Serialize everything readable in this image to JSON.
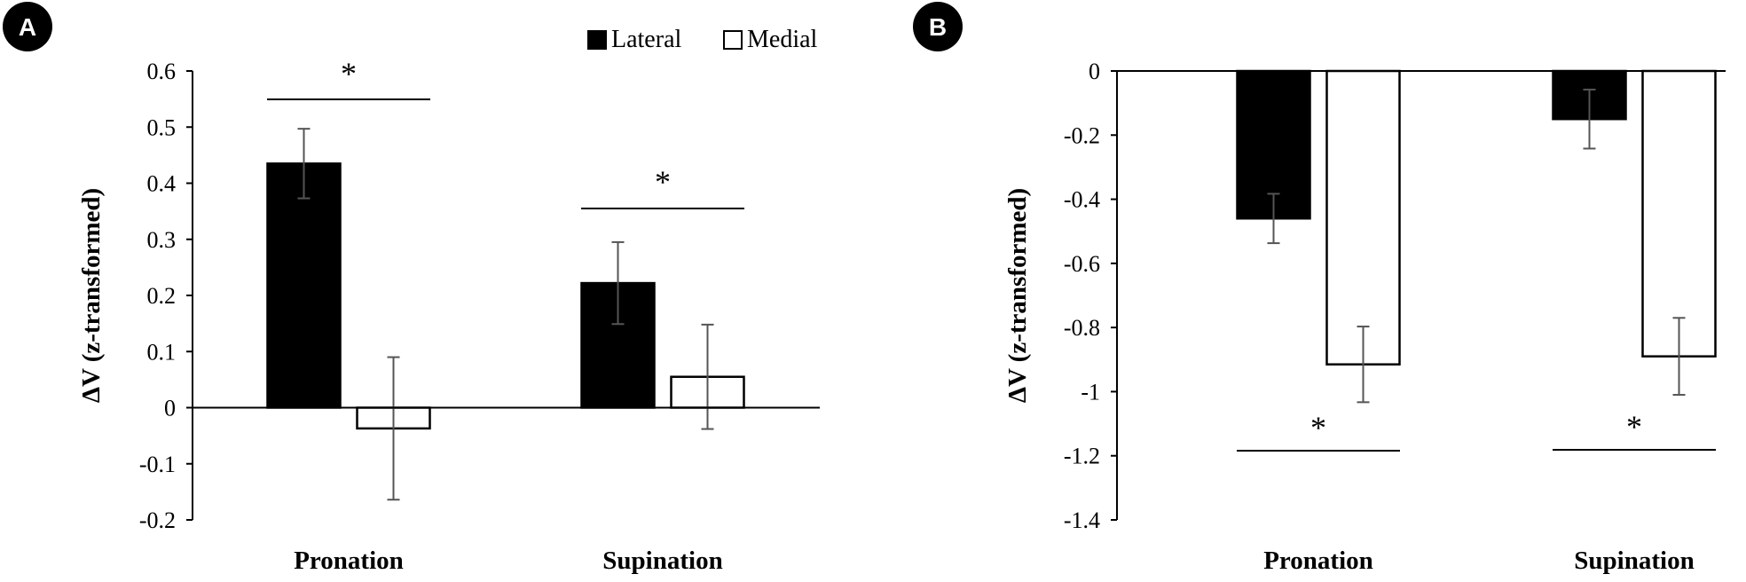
{
  "chart_data": [
    {
      "panel_label": "A",
      "type": "bar",
      "categories": [
        "Pronation",
        "Supination"
      ],
      "series": [
        {
          "name": "Lateral",
          "fill": "#000000",
          "values": [
            0.435,
            0.222
          ],
          "errors": [
            0.062,
            0.073
          ]
        },
        {
          "name": "Medial",
          "fill": "#ffffff",
          "values": [
            -0.037,
            0.055
          ],
          "errors": [
            0.127,
            0.093
          ]
        }
      ],
      "ylabel": "ΔV (z-transformed)",
      "ylim": [
        -0.2,
        0.6
      ],
      "yticks": [
        "0.6",
        "0.5",
        "0.4",
        "0.3",
        "0.2",
        "0.1",
        "0",
        "-0.1",
        "-0.2"
      ],
      "significance": [
        {
          "category": "Pronation",
          "marker": "*",
          "position": "above"
        },
        {
          "category": "Supination",
          "marker": "*",
          "position": "above"
        }
      ],
      "legend": "top-right",
      "grid": false
    },
    {
      "panel_label": "B",
      "type": "bar",
      "categories": [
        "Pronation",
        "Supination"
      ],
      "series": [
        {
          "name": "Lateral",
          "fill": "#000000",
          "values": [
            -0.46,
            -0.15
          ],
          "errors": [
            0.077,
            0.092
          ]
        },
        {
          "name": "Medial",
          "fill": "#ffffff",
          "values": [
            -0.915,
            -0.89
          ],
          "errors": [
            0.118,
            0.12
          ]
        }
      ],
      "ylabel": "ΔV (z-transformed)",
      "ylim": [
        -1.4,
        0
      ],
      "yticks": [
        "0",
        "-0.2",
        "-0.4",
        "-0.6",
        "-0.8",
        "-1",
        "-1.2",
        "-1.4"
      ],
      "significance": [
        {
          "category": "Pronation",
          "marker": "*",
          "position": "below"
        },
        {
          "category": "Supination",
          "marker": "*",
          "position": "below"
        }
      ],
      "grid": false
    }
  ]
}
